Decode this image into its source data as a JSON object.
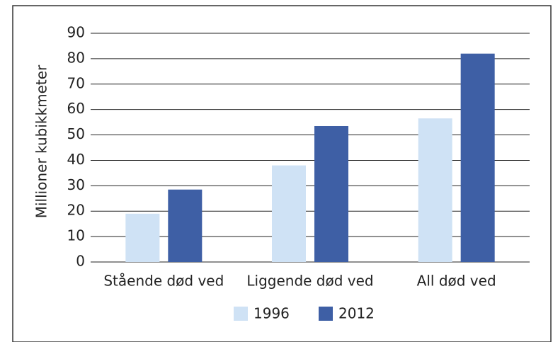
{
  "chart_data": {
    "type": "bar",
    "y_label": "Millioner kubikkmeter",
    "categories": [
      "Stående død ved",
      "Liggende død ved",
      "All død ved"
    ],
    "series": [
      {
        "name": "1996",
        "color": "#cfe2f5",
        "values": [
          19,
          38,
          56.5
        ]
      },
      {
        "name": "2012",
        "color": "#3e5fa5",
        "values": [
          28.5,
          53.5,
          82
        ]
      }
    ],
    "ylim": [
      0,
      90
    ],
    "yticks": [
      0,
      10,
      20,
      30,
      40,
      50,
      60,
      70,
      80,
      90
    ],
    "grid": true
  }
}
